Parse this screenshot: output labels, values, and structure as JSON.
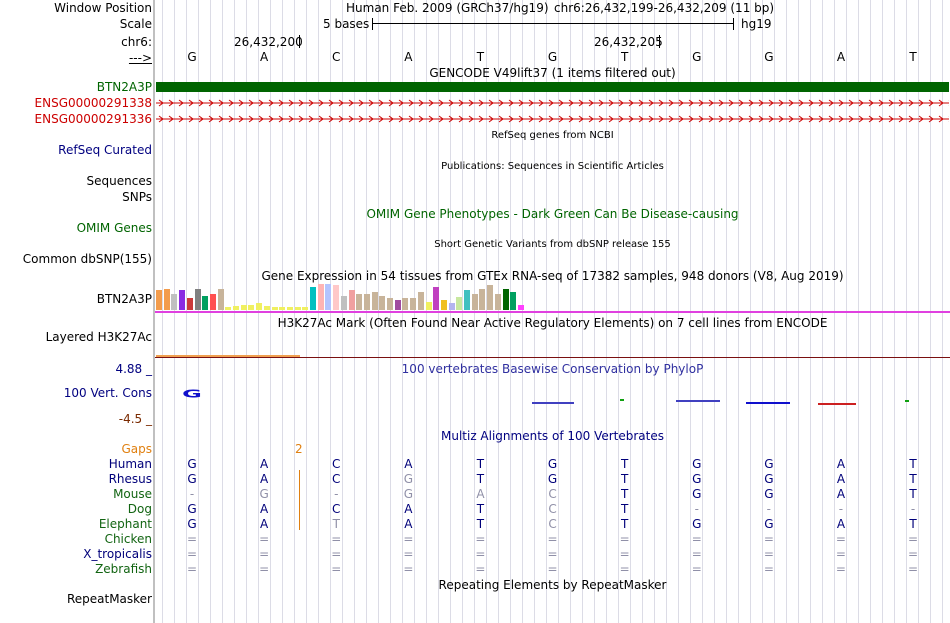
{
  "labels": {
    "window_position": "Window Position",
    "scale": "Scale",
    "chrom": "chr6:",
    "strand": "--->",
    "gencode_gene": "BTN2A3P",
    "ensg1": "ENSG00000291338",
    "ensg2": "ENSG00000291336",
    "refseq": "RefSeq Curated",
    "sequences": "Sequences",
    "snps": "SNPs",
    "omim": "OMIM Genes",
    "dbsnp": "Common dbSNP(155)",
    "gtex_gene": "BTN2A3P",
    "h3k27ac": "Layered H3K27Ac",
    "phylop_max": "4.88 _",
    "phylop_label": "100 Vert. Cons",
    "phylop_min": "-4.5 _",
    "gaps": "Gaps",
    "repeatmasker": "RepeatMasker"
  },
  "header": {
    "assembly": "Human Feb. 2009 (GRCh37/hg19)",
    "position": "chr6:26,432,199-26,432,209 (11 bp)",
    "scale_text": "5 bases",
    "scale_db": "hg19",
    "coord1": "26,432,200",
    "coord2": "26,432,205"
  },
  "reference_bases": [
    "G",
    "A",
    "C",
    "A",
    "T",
    "G",
    "T",
    "G",
    "G",
    "A",
    "T"
  ],
  "track_titles": {
    "gencode": "GENCODE V49lift37 (1 items filtered out)",
    "refseq": "RefSeq genes from NCBI",
    "publications": "Publications: Sequences in Scientific Articles",
    "omim": "OMIM Gene Phenotypes - Dark Green Can Be Disease-causing",
    "dbsnp": "Short Genetic Variants from dbSNP release 155",
    "gtex": "Gene Expression in 54 tissues from GTEx RNA-seq of 17382 samples, 948 donors (V8, Aug 2019)",
    "h3k27ac": "H3K27Ac Mark (Often Found Near Active Regulatory Elements) on 7 cell lines from ENCODE",
    "phylop": "100 vertebrates Basewise Conservation by PhyloP",
    "multiz": "Multiz Alignments of 100 Vertebrates",
    "repeatmasker": "Repeating Elements by RepeatMasker"
  },
  "phylop_glyph": "G",
  "gap_marker": "2",
  "species": [
    {
      "name": "Human",
      "color": "#00007a",
      "bases": [
        "G",
        "A",
        "C",
        "A",
        "T",
        "G",
        "T",
        "G",
        "G",
        "A",
        "T"
      ],
      "faint": []
    },
    {
      "name": "Rhesus",
      "color": "#00007a",
      "bases": [
        "G",
        "A",
        "C",
        "G",
        "T",
        "G",
        "T",
        "G",
        "G",
        "A",
        "T"
      ],
      "faint": [
        3
      ]
    },
    {
      "name": "Mouse",
      "color": "#126412",
      "bases": [
        "-",
        "G",
        "-",
        "G",
        "A",
        "C",
        "T",
        "G",
        "G",
        "A",
        "T"
      ],
      "faint": [
        0,
        1,
        2,
        3,
        4,
        5
      ]
    },
    {
      "name": "Dog",
      "color": "#126412",
      "bases": [
        "G",
        "A",
        "C",
        "A",
        "T",
        "C",
        "T",
        "-",
        "-",
        "-",
        "-"
      ],
      "faint": [
        5,
        7,
        8,
        9,
        10
      ]
    },
    {
      "name": "Elephant",
      "color": "#126412",
      "bases": [
        "G",
        "A",
        "T",
        "A",
        "T",
        "C",
        "T",
        "G",
        "G",
        "A",
        "T"
      ],
      "faint": [
        2,
        5
      ]
    },
    {
      "name": "Chicken",
      "color": "#126412",
      "bases": [
        "=",
        "=",
        "=",
        "=",
        "=",
        "=",
        "=",
        "=",
        "=",
        "=",
        "="
      ],
      "faint": [
        0,
        1,
        2,
        3,
        4,
        5,
        6,
        7,
        8,
        9,
        10
      ]
    },
    {
      "name": "X_tropicalis",
      "color": "#00007a",
      "bases": [
        "=",
        "=",
        "=",
        "=",
        "=",
        "=",
        "=",
        "=",
        "=",
        "=",
        "="
      ],
      "faint": [
        0,
        1,
        2,
        3,
        4,
        5,
        6,
        7,
        8,
        9,
        10
      ]
    },
    {
      "name": "Zebrafish",
      "color": "#126412",
      "bases": [
        "=",
        "=",
        "=",
        "=",
        "=",
        "=",
        "=",
        "=",
        "=",
        "=",
        "="
      ],
      "faint": [
        0,
        1,
        2,
        3,
        4,
        5,
        6,
        7,
        8,
        9,
        10
      ]
    }
  ],
  "colors": {
    "gencode_gene": "#006400",
    "ensg": "#cc0000",
    "navy": "#000080",
    "gaps": "#e08010",
    "phylop_min": "#7a2a00",
    "species_faint": "#9090a8",
    "h3k27ac_line": "#e040e0",
    "h3k27ac_bottom": "#7a1010",
    "h3k27ac_signal": "#f0a050"
  },
  "gtex_colors": [
    "#f39c4c",
    "#f39c4c",
    "#c0c0c0",
    "#8a2be2",
    "#cc3a3a",
    "#808080",
    "#00a060",
    "#ff5050",
    "#c8b49a",
    "#f0f060",
    "#f0f060",
    "#f0f060",
    "#f0f060",
    "#f0f060",
    "#f0f060",
    "#f0f060",
    "#f0f060",
    "#f0f060",
    "#f0f060",
    "#f0f060",
    "#00c0c0",
    "#ffb4b4",
    "#b4c4ff",
    "#ffc8c8",
    "#c0c0c0",
    "#f0a0a0",
    "#c8b49a",
    "#c8b49a",
    "#c8b49a",
    "#c8b49a",
    "#c8b49a",
    "#a04aa0",
    "#c8b49a",
    "#c8b49a",
    "#c8b49a",
    "#f0f060",
    "#c040c0",
    "#f0c020",
    "#b4b4f0",
    "#c8e8a0",
    "#40c0c0",
    "#c8b49a",
    "#c8b49a",
    "#c8b49a",
    "#c8b49a",
    "#006400",
    "#00a060",
    "#ff40ff"
  ],
  "gtex_values": [
    0.75,
    0.8,
    0.6,
    0.75,
    0.45,
    0.8,
    0.55,
    0.6,
    0.8,
    0.12,
    0.15,
    0.2,
    0.2,
    0.25,
    0.15,
    0.12,
    0.1,
    0.12,
    0.1,
    0.12,
    0.9,
    1.0,
    1.0,
    0.95,
    0.55,
    0.75,
    0.6,
    0.6,
    0.7,
    0.55,
    0.45,
    0.4,
    0.45,
    0.45,
    0.7,
    0.3,
    0.9,
    0.4,
    0.25,
    0.5,
    0.75,
    0.6,
    0.8,
    0.95,
    0.6,
    0.8,
    0.7,
    0.2
  ]
}
